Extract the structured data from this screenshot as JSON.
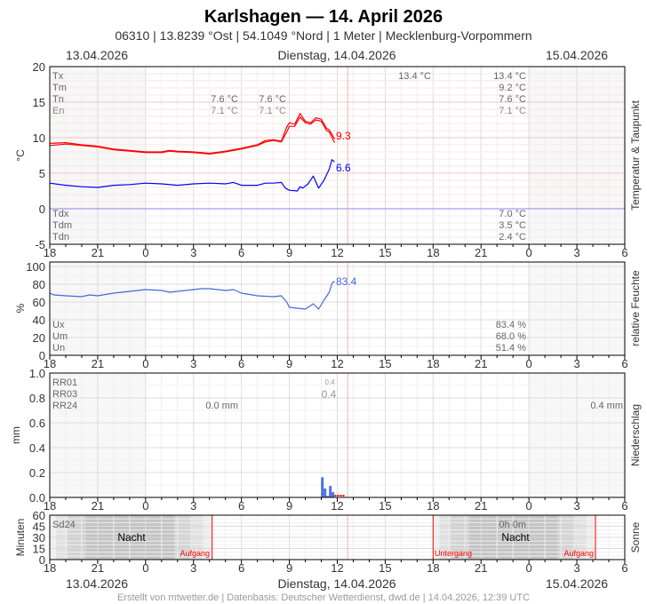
{
  "header": {
    "title": "Karlshagen  —  14. April 2026",
    "subtitle": "06310  |  13.8239 °Ost  |  54.1049 °Nord  |  1 Meter  |  Mecklenburg-Vorpommern",
    "date_left": "13.04.2026",
    "date_center": "Dienstag, 14.04.2026",
    "date_right": "15.04.2026"
  },
  "footer": "Erstellt von mtwetter.de | Datenbasis: Deutscher Wetterdienst, dwd.de | 14.04.2026, 12:39 UTC",
  "colors": {
    "temperature": "#ff0000",
    "dewpoint": "#0000ff",
    "humidity": "#4169e1",
    "precip": "#4a74e0",
    "precip_missing": "#ff0000",
    "now_line": "#f4b0b0",
    "sun_event": "#ff0000"
  },
  "x_axis": {
    "start": "13.04. 18:00",
    "end": "15.04. 06:00",
    "tick_labels": [
      "18",
      "21",
      "0",
      "3",
      "6",
      "9",
      "12",
      "15",
      "18",
      "21",
      "0",
      "3",
      "6"
    ],
    "now": "14.04. 12:39"
  },
  "chart_data": [
    {
      "type": "line",
      "ylabel": "°C",
      "side_label": "Temperatur & Taupunkt",
      "ylim": [
        -5,
        20
      ],
      "y_ticks": [
        "20",
        "15",
        "10",
        "5",
        "0",
        "-5"
      ],
      "grid": true,
      "series": [
        {
          "key": "temperature",
          "end_label": "9.3",
          "points": [
            [
              "13.04. 18:00",
              8.9
            ],
            [
              "13.04. 19:00",
              9.1
            ],
            [
              "13.04. 20:00",
              8.9
            ],
            [
              "13.04. 21:00",
              8.7
            ],
            [
              "13.04. 22:00",
              8.3
            ],
            [
              "13.04. 23:00",
              8.1
            ],
            [
              "14.04. 00:00",
              7.9
            ],
            [
              "14.04. 01:00",
              7.9
            ],
            [
              "14.04. 01:30",
              8.1
            ],
            [
              "14.04. 02:00",
              8.0
            ],
            [
              "14.04. 03:00",
              7.9
            ],
            [
              "14.04. 04:00",
              7.7
            ],
            [
              "14.04. 05:00",
              8.0
            ],
            [
              "14.04. 06:00",
              8.4
            ],
            [
              "14.04. 07:00",
              8.9
            ],
            [
              "14.04. 07:30",
              9.4
            ],
            [
              "14.04. 08:00",
              9.6
            ],
            [
              "14.04. 08:30",
              9.4
            ],
            [
              "14.04. 08:50",
              10.8
            ],
            [
              "14.04. 09:00",
              11.6
            ],
            [
              "14.04. 09:20",
              11.6
            ],
            [
              "14.04. 09:40",
              12.9
            ],
            [
              "14.04. 10:00",
              12.1
            ],
            [
              "14.04. 10:20",
              11.9
            ],
            [
              "14.04. 10:40",
              12.5
            ],
            [
              "14.04. 11:00",
              12.3
            ],
            [
              "14.04. 11:20",
              11.0
            ],
            [
              "14.04. 11:30",
              10.8
            ],
            [
              "14.04. 11:50",
              9.3
            ]
          ]
        },
        {
          "key": "temperature_max",
          "points": [
            [
              "13.04. 18:00",
              9.2
            ],
            [
              "13.04. 19:00",
              9.3
            ],
            [
              "13.04. 20:00",
              9.0
            ],
            [
              "13.04. 21:00",
              8.8
            ],
            [
              "13.04. 22:00",
              8.4
            ],
            [
              "13.04. 23:00",
              8.2
            ],
            [
              "14.04. 00:00",
              8.0
            ],
            [
              "14.04. 01:00",
              8.0
            ],
            [
              "14.04. 01:30",
              8.2
            ],
            [
              "14.04. 02:00",
              8.1
            ],
            [
              "14.04. 03:00",
              8.0
            ],
            [
              "14.04. 04:00",
              7.8
            ],
            [
              "14.04. 05:00",
              8.1
            ],
            [
              "14.04. 06:00",
              8.5
            ],
            [
              "14.04. 07:00",
              9.0
            ],
            [
              "14.04. 07:30",
              9.6
            ],
            [
              "14.04. 08:00",
              9.7
            ],
            [
              "14.04. 08:30",
              9.5
            ],
            [
              "14.04. 08:50",
              11.5
            ],
            [
              "14.04. 09:00",
              12.1
            ],
            [
              "14.04. 09:20",
              11.9
            ],
            [
              "14.04. 09:40",
              13.4
            ],
            [
              "14.04. 10:00",
              12.3
            ],
            [
              "14.04. 10:20",
              12.1
            ],
            [
              "14.04. 10:40",
              12.8
            ],
            [
              "14.04. 11:00",
              12.6
            ],
            [
              "14.04. 11:20",
              11.3
            ],
            [
              "14.04. 11:30",
              11.1
            ],
            [
              "14.04. 11:50",
              9.8
            ]
          ]
        },
        {
          "key": "dewpoint",
          "end_label": "6.6",
          "points": [
            [
              "13.04. 18:00",
              3.6
            ],
            [
              "13.04. 19:00",
              3.3
            ],
            [
              "13.04. 20:00",
              3.1
            ],
            [
              "13.04. 21:00",
              3.0
            ],
            [
              "13.04. 22:00",
              3.3
            ],
            [
              "13.04. 23:00",
              3.4
            ],
            [
              "14.04. 00:00",
              3.6
            ],
            [
              "14.04. 01:00",
              3.5
            ],
            [
              "14.04. 02:00",
              3.3
            ],
            [
              "14.04. 03:00",
              3.5
            ],
            [
              "14.04. 04:00",
              3.6
            ],
            [
              "14.04. 05:00",
              3.5
            ],
            [
              "14.04. 05:30",
              3.7
            ],
            [
              "14.04. 06:00",
              3.3
            ],
            [
              "14.04. 07:00",
              3.3
            ],
            [
              "14.04. 07:30",
              3.6
            ],
            [
              "14.04. 08:00",
              3.6
            ],
            [
              "14.04. 08:30",
              3.7
            ],
            [
              "14.04. 08:45",
              2.9
            ],
            [
              "14.04. 09:00",
              2.6
            ],
            [
              "14.04. 09:30",
              2.5
            ],
            [
              "14.04. 09:40",
              3.1
            ],
            [
              "14.04. 09:50",
              2.9
            ],
            [
              "14.04. 10:10",
              3.5
            ],
            [
              "14.04. 10:30",
              4.6
            ],
            [
              "14.04. 10:50",
              2.9
            ],
            [
              "14.04. 11:10",
              4.0
            ],
            [
              "14.04. 11:30",
              5.6
            ],
            [
              "14.04. 11:40",
              6.9
            ],
            [
              "14.04. 11:50",
              6.6
            ]
          ]
        }
      ],
      "stats": {
        "labels": [
          "Tx",
          "Tm",
          "Tn",
          "En"
        ],
        "day2_col1": {
          "Tn": "7.6 °C",
          "En": "7.1 °C"
        },
        "day2_col2": {
          "Tn": "7.6 °C",
          "En": "7.1 °C"
        },
        "day2_tx": "13.4 °C",
        "summary": {
          "Tx": "13.4 °C",
          "Tm": "9.2 °C",
          "Tn": "7.6 °C",
          "En": "7.1 °C"
        },
        "dew_labels": [
          "Tdx",
          "Tdm",
          "Tdn"
        ],
        "dew_summary": {
          "Tdx": "7.0 °C",
          "Tdm": "3.5 °C",
          "Tdn": "2.4 °C"
        }
      }
    },
    {
      "type": "line",
      "ylabel": "%",
      "side_label": "relative Feuchte",
      "ylim": [
        0,
        100
      ],
      "y_ticks": [
        "100",
        "80",
        "60",
        "40",
        "20",
        "0"
      ],
      "series": [
        {
          "key": "humidity",
          "end_label": "83.4",
          "points": [
            [
              "13.04. 18:00",
              70
            ],
            [
              "13.04. 18:15",
              68
            ],
            [
              "13.04. 19:00",
              67
            ],
            [
              "13.04. 20:00",
              66
            ],
            [
              "13.04. 20:30",
              68
            ],
            [
              "13.04. 21:00",
              67
            ],
            [
              "13.04. 22:00",
              70
            ],
            [
              "13.04. 23:00",
              72
            ],
            [
              "14.04. 00:00",
              74
            ],
            [
              "14.04. 01:00",
              73
            ],
            [
              "14.04. 01:30",
              71
            ],
            [
              "14.04. 02:00",
              72
            ],
            [
              "14.04. 03:00",
              74
            ],
            [
              "14.04. 03:30",
              75
            ],
            [
              "14.04. 04:00",
              75
            ],
            [
              "14.04. 05:00",
              73
            ],
            [
              "14.04. 05:30",
              74
            ],
            [
              "14.04. 06:00",
              70
            ],
            [
              "14.04. 07:00",
              67
            ],
            [
              "14.04. 08:00",
              66
            ],
            [
              "14.04. 08:30",
              67
            ],
            [
              "14.04. 08:50",
              60
            ],
            [
              "14.04. 09:00",
              54
            ],
            [
              "14.04. 09:30",
              53
            ],
            [
              "14.04. 10:00",
              52
            ],
            [
              "14.04. 10:30",
              58
            ],
            [
              "14.04. 10:50",
              52
            ],
            [
              "14.04. 11:10",
              62
            ],
            [
              "14.04. 11:30",
              71
            ],
            [
              "14.04. 11:40",
              81
            ],
            [
              "14.04. 11:50",
              83.4
            ]
          ]
        }
      ],
      "stats": {
        "labels": [
          "Ux",
          "Um",
          "Un"
        ],
        "summary": {
          "Ux": "83.4 %",
          "Um": "68.0 %",
          "Un": "51.4 %"
        }
      }
    },
    {
      "type": "bar",
      "ylabel": "mm",
      "side_label": "Niederschlag",
      "ylim": [
        0,
        1.0
      ],
      "y_ticks": [
        "1.0",
        "0.8",
        "0.6",
        "0.4",
        "0.2",
        "0.0"
      ],
      "bars": [
        [
          "14.04. 11:00",
          0.16
        ],
        [
          "14.04. 11:10",
          0.07
        ],
        [
          "14.04. 11:20",
          0.01
        ],
        [
          "14.04. 11:30",
          0.09
        ],
        [
          "14.04. 11:40",
          0.04
        ]
      ],
      "missing": [
        [
          "14.04. 11:50",
          "14.04. 12:30"
        ]
      ],
      "stats": {
        "labels": [
          "RR01",
          "RR03",
          "RR24"
        ],
        "rr01": "0.4",
        "rr03": "0.4",
        "rr24_day2": "0.0 mm",
        "rr24_summary": "0.4 mm"
      }
    },
    {
      "type": "area",
      "ylabel": "Minuten",
      "side_label": "Sonne",
      "ylim": [
        0,
        60
      ],
      "y_ticks": [
        "60",
        "45",
        "30",
        "15",
        "0"
      ],
      "nights": [
        {
          "start": "13.04. 18:00",
          "end": "14.04. 04:10"
        },
        {
          "start": "14.04. 18:00",
          "end": "15.04. 04:10"
        }
      ],
      "labels": {
        "stat": "Sd24",
        "sun_summary": "0h 0m",
        "night": "Nacht",
        "sunrise": "Aufgang",
        "sunset": "Untergang"
      }
    }
  ]
}
